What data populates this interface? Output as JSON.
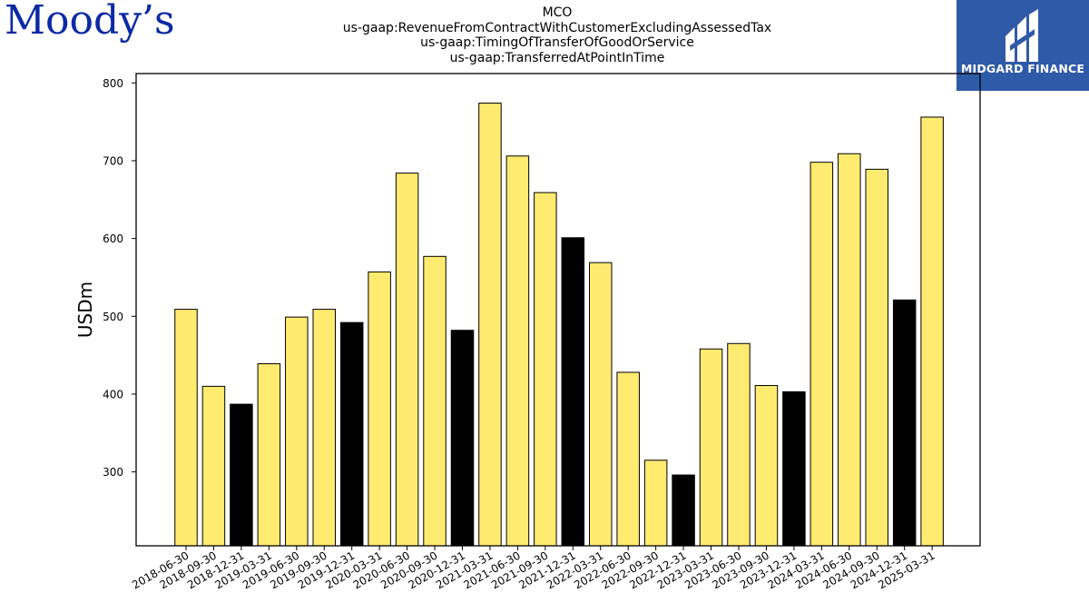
{
  "header": {
    "brand_left": "Moody’s",
    "brand_right": "MIDGARD FINANCE",
    "title_lines": [
      "MCO",
      "us-gaap:RevenueFromContractWithCustomerExcludingAssessedTax",
      "us-gaap:TimingOfTransferOfGoodOrService",
      "us-gaap:TransferredAtPointInTime"
    ]
  },
  "colors": {
    "bar_default": "#ffeb70",
    "bar_highlight": "#000000",
    "bar_edge": "#000000",
    "brand_blue": "#0a2aa4",
    "midgard_bg": "#2f5aa8"
  },
  "chart_data": {
    "type": "bar",
    "title": "MCO us-gaap:RevenueFromContractWithCustomerExcludingAssessedTax us-gaap:TimingOfTransferOfGoodOrService us-gaap:TransferredAtPointInTime",
    "xlabel": "",
    "ylabel": "USDm",
    "ylim": [
      205,
      812
    ],
    "yticks": [
      300,
      400,
      500,
      600,
      700,
      800
    ],
    "grid": false,
    "categories": [
      "2018-06-30",
      "2018-09-30",
      "2018-12-31",
      "2019-03-31",
      "2019-06-30",
      "2019-09-30",
      "2019-12-31",
      "2020-03-31",
      "2020-06-30",
      "2020-09-30",
      "2020-12-31",
      "2021-03-31",
      "2021-06-30",
      "2021-09-30",
      "2021-12-31",
      "2022-03-31",
      "2022-06-30",
      "2022-09-30",
      "2022-12-31",
      "2023-03-31",
      "2023-06-30",
      "2023-09-30",
      "2023-12-31",
      "2024-03-31",
      "2024-06-30",
      "2024-09-30",
      "2024-12-31",
      "2025-03-31"
    ],
    "values": [
      509,
      410,
      387,
      439,
      499,
      509,
      492,
      557,
      684,
      577,
      482,
      774,
      706,
      659,
      601,
      569,
      428,
      315,
      296,
      458,
      465,
      411,
      403,
      698,
      709,
      689,
      521,
      756
    ],
    "highlighted": [
      false,
      false,
      true,
      false,
      false,
      false,
      true,
      false,
      false,
      false,
      true,
      false,
      false,
      false,
      true,
      false,
      false,
      false,
      true,
      false,
      false,
      false,
      true,
      false,
      false,
      false,
      true,
      false
    ]
  }
}
